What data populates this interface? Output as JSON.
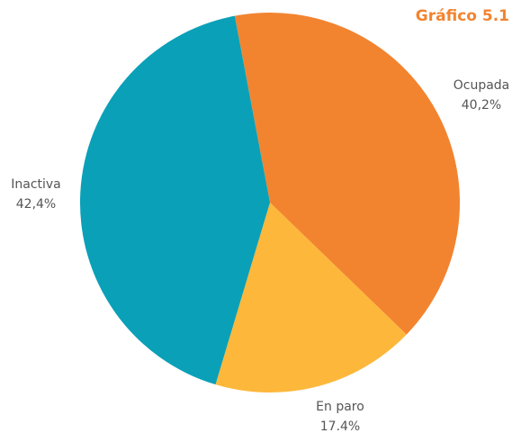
{
  "chart_data": {
    "type": "pie",
    "title": "Gráfico 5.1",
    "categories": [
      "Ocupada",
      "En paro",
      "Inactiva"
    ],
    "values": [
      40.2,
      17.4,
      42.4
    ],
    "value_labels": [
      "40,2%",
      "17.4%",
      "42,4%"
    ],
    "colors": [
      "#f28430",
      "#fdb73b",
      "#0aa0b8"
    ]
  }
}
